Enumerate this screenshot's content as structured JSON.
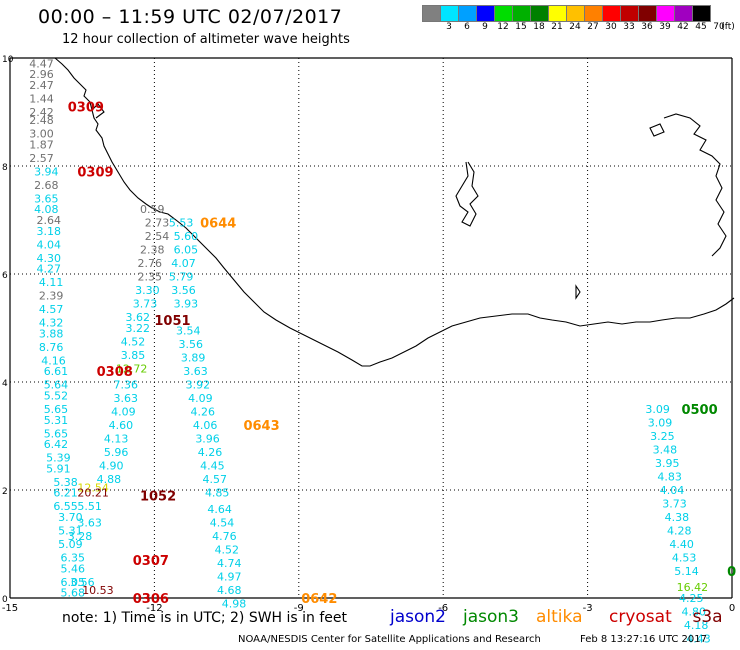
{
  "header": {
    "title": "00:00 – 11:59 UTC 02/07/2017",
    "subtitle": "12 hour collection of altimeter wave heights"
  },
  "legend": {
    "unit": "(ft)",
    "bins": [
      {
        "label": "3",
        "color": "#808080"
      },
      {
        "label": "6",
        "color": "#00e5ff"
      },
      {
        "label": "9",
        "color": "#00a0ff"
      },
      {
        "label": "12",
        "color": "#0000ff"
      },
      {
        "label": "15",
        "color": "#00dd00"
      },
      {
        "label": "18",
        "color": "#00b000"
      },
      {
        "label": "21",
        "color": "#008000"
      },
      {
        "label": "24",
        "color": "#ffff00"
      },
      {
        "label": "27",
        "color": "#ffc000"
      },
      {
        "label": "30",
        "color": "#ff8000"
      },
      {
        "label": "33",
        "color": "#ff0000"
      },
      {
        "label": "36",
        "color": "#c00000"
      },
      {
        "label": "39",
        "color": "#800000"
      },
      {
        "label": "42",
        "color": "#ff00ff"
      },
      {
        "label": "45",
        "color": "#a000c0"
      },
      {
        "label": "70",
        "color": "#000000"
      }
    ]
  },
  "axes": {
    "x_ticks": [
      "-15",
      "-12",
      "-9",
      "-6",
      "-3",
      "0"
    ],
    "y_ticks": [
      "10",
      "8",
      "6",
      "4",
      "2",
      "0"
    ]
  },
  "colors": {
    "gray": "#707070",
    "cyan": "#00d0e8",
    "jason2": "#0000cc",
    "jason3": "#008800",
    "altika": "#ff8c00",
    "cryosat": "#cc0000",
    "s3a": "#800000",
    "green": "#008800",
    "lime": "#66cc00",
    "yellow": "#d8d800"
  },
  "observations": {
    "track_a": [
      {
        "lon": -14.6,
        "lat": 9.9,
        "v": "4.47",
        "c": "gray"
      },
      {
        "lon": -14.6,
        "lat": 9.7,
        "v": "2.96",
        "c": "gray"
      },
      {
        "lon": -14.6,
        "lat": 9.5,
        "v": "2.47",
        "c": "gray"
      },
      {
        "lon": -14.6,
        "lat": 9.25,
        "v": "1.44",
        "c": "gray"
      },
      {
        "lon": -14.6,
        "lat": 9.0,
        "v": "2.42",
        "c": "gray"
      },
      {
        "lon": -14.6,
        "lat": 8.85,
        "v": "2.48",
        "c": "gray"
      },
      {
        "lon": -14.6,
        "lat": 8.6,
        "v": "3.00",
        "c": "gray"
      },
      {
        "lon": -14.6,
        "lat": 8.4,
        "v": "1.87",
        "c": "gray"
      },
      {
        "lon": -14.6,
        "lat": 8.15,
        "v": "2.57",
        "c": "gray"
      },
      {
        "lon": -14.5,
        "lat": 7.9,
        "v": "3.94",
        "c": "cyan"
      },
      {
        "lon": -14.5,
        "lat": 7.65,
        "v": "2.68",
        "c": "gray"
      },
      {
        "lon": -14.5,
        "lat": 7.4,
        "v": "3.65",
        "c": "cyan"
      },
      {
        "lon": -14.5,
        "lat": 7.2,
        "v": "4.08",
        "c": "cyan"
      },
      {
        "lon": -14.45,
        "lat": 7.0,
        "v": "2.64",
        "c": "gray"
      },
      {
        "lon": -14.45,
        "lat": 6.8,
        "v": "3.18",
        "c": "cyan"
      },
      {
        "lon": -14.45,
        "lat": 6.55,
        "v": "4.04",
        "c": "cyan"
      },
      {
        "lon": -14.45,
        "lat": 6.3,
        "v": "4.30",
        "c": "cyan"
      },
      {
        "lon": -14.45,
        "lat": 6.1,
        "v": "4.27",
        "c": "cyan"
      },
      {
        "lon": -14.4,
        "lat": 5.85,
        "v": "4.11",
        "c": "cyan"
      },
      {
        "lon": -14.4,
        "lat": 5.6,
        "v": "2.39",
        "c": "gray"
      },
      {
        "lon": -14.4,
        "lat": 5.35,
        "v": "4.57",
        "c": "cyan"
      },
      {
        "lon": -14.4,
        "lat": 5.1,
        "v": "4.32",
        "c": "cyan"
      },
      {
        "lon": -14.4,
        "lat": 4.9,
        "v": "3.88",
        "c": "cyan"
      },
      {
        "lon": -14.4,
        "lat": 4.65,
        "v": "8.76",
        "c": "cyan"
      },
      {
        "lon": -14.35,
        "lat": 4.4,
        "v": "4.16",
        "c": "cyan"
      },
      {
        "lon": -14.3,
        "lat": 4.2,
        "v": "6.61",
        "c": "cyan"
      },
      {
        "lon": -14.3,
        "lat": 3.95,
        "v": "5.64",
        "c": "cyan"
      },
      {
        "lon": -14.3,
        "lat": 3.75,
        "v": "5.52",
        "c": "cyan"
      },
      {
        "lon": -14.3,
        "lat": 3.5,
        "v": "5.65",
        "c": "cyan"
      },
      {
        "lon": -14.3,
        "lat": 3.3,
        "v": "5.31",
        "c": "cyan"
      },
      {
        "lon": -14.3,
        "lat": 3.05,
        "v": "5.65",
        "c": "cyan"
      },
      {
        "lon": -14.3,
        "lat": 2.85,
        "v": "6.42",
        "c": "cyan"
      },
      {
        "lon": -14.25,
        "lat": 2.6,
        "v": "5.39",
        "c": "cyan"
      },
      {
        "lon": -14.25,
        "lat": 2.4,
        "v": "5.91",
        "c": "cyan"
      },
      {
        "lon": -14.1,
        "lat": 2.15,
        "v": "5.38",
        "c": "cyan"
      },
      {
        "lon": -14.1,
        "lat": 1.95,
        "v": "6.21",
        "c": "cyan"
      },
      {
        "lon": -14.1,
        "lat": 1.7,
        "v": "6.55",
        "c": "cyan"
      },
      {
        "lon": -14.0,
        "lat": 1.5,
        "v": "3.70",
        "c": "cyan"
      },
      {
        "lon": -14.0,
        "lat": 1.25,
        "v": "5.31",
        "c": "cyan"
      },
      {
        "lon": -14.0,
        "lat": 1.0,
        "v": "5.09",
        "c": "cyan"
      },
      {
        "lon": -13.95,
        "lat": 0.75,
        "v": "6.35",
        "c": "cyan"
      },
      {
        "lon": -13.95,
        "lat": 0.55,
        "v": "5.46",
        "c": "cyan"
      },
      {
        "lon": -13.95,
        "lat": 0.3,
        "v": "6.05",
        "c": "cyan"
      },
      {
        "lon": -13.95,
        "lat": 0.1,
        "v": "5.68",
        "c": "cyan"
      }
    ],
    "track_b": [
      {
        "lon": -12.3,
        "lat": 7.2,
        "v": "0.59",
        "c": "gray"
      },
      {
        "lon": -12.2,
        "lat": 6.95,
        "v": "2.73",
        "c": "gray"
      },
      {
        "lon": -12.2,
        "lat": 6.7,
        "v": "2.54",
        "c": "gray"
      },
      {
        "lon": -12.3,
        "lat": 6.45,
        "v": "2.38",
        "c": "gray"
      },
      {
        "lon": -12.35,
        "lat": 6.2,
        "v": "2.76",
        "c": "gray"
      },
      {
        "lon": -12.35,
        "lat": 5.95,
        "v": "2.35",
        "c": "gray"
      },
      {
        "lon": -12.4,
        "lat": 5.7,
        "v": "3.30",
        "c": "cyan"
      },
      {
        "lon": -12.45,
        "lat": 5.45,
        "v": "3.73",
        "c": "cyan"
      },
      {
        "lon": -12.6,
        "lat": 5.2,
        "v": "3.62",
        "c": "cyan"
      },
      {
        "lon": -12.6,
        "lat": 5.0,
        "v": "3.22",
        "c": "cyan"
      },
      {
        "lon": -12.7,
        "lat": 4.75,
        "v": "4.52",
        "c": "cyan"
      },
      {
        "lon": -12.7,
        "lat": 4.5,
        "v": "3.85",
        "c": "cyan"
      },
      {
        "lon": -12.8,
        "lat": 4.25,
        "v": "12.72",
        "c": "lime"
      },
      {
        "lon": -12.85,
        "lat": 3.95,
        "v": "7.36",
        "c": "cyan"
      },
      {
        "lon": -12.85,
        "lat": 3.7,
        "v": "3.63",
        "c": "cyan"
      },
      {
        "lon": -12.9,
        "lat": 3.45,
        "v": "4.09",
        "c": "cyan"
      },
      {
        "lon": -12.95,
        "lat": 3.2,
        "v": "4.60",
        "c": "cyan"
      },
      {
        "lon": -13.05,
        "lat": 2.95,
        "v": "4.13",
        "c": "cyan"
      },
      {
        "lon": -13.05,
        "lat": 2.7,
        "v": "5.96",
        "c": "cyan"
      },
      {
        "lon": -13.15,
        "lat": 2.45,
        "v": "4.90",
        "c": "cyan"
      },
      {
        "lon": -13.2,
        "lat": 2.2,
        "v": "4.88",
        "c": "cyan"
      },
      {
        "lon": -13.6,
        "lat": 2.05,
        "v": "12.54",
        "c": "yellow"
      },
      {
        "lon": -13.6,
        "lat": 1.95,
        "v": "20.21",
        "c": "s3a"
      },
      {
        "lon": -13.6,
        "lat": 1.7,
        "v": "5.51",
        "c": "cyan"
      },
      {
        "lon": -13.6,
        "lat": 1.4,
        "v": "3.63",
        "c": "cyan"
      },
      {
        "lon": -13.8,
        "lat": 1.15,
        "v": "3.28",
        "c": "cyan"
      },
      {
        "lon": -13.75,
        "lat": 0.3,
        "v": "3.56",
        "c": "cyan"
      },
      {
        "lon": -13.5,
        "lat": 0.15,
        "v": "10.53",
        "c": "s3a"
      }
    ],
    "track_c": [
      {
        "lon": -11.7,
        "lat": 6.95,
        "v": "5.53",
        "c": "cyan"
      },
      {
        "lon": -11.6,
        "lat": 6.7,
        "v": "5.60",
        "c": "cyan"
      },
      {
        "lon": -11.6,
        "lat": 6.45,
        "v": "6.05",
        "c": "cyan"
      },
      {
        "lon": -11.65,
        "lat": 6.2,
        "v": "4.07",
        "c": "cyan"
      },
      {
        "lon": -11.7,
        "lat": 5.95,
        "v": "5.79",
        "c": "cyan"
      },
      {
        "lon": -11.65,
        "lat": 5.7,
        "v": "3.56",
        "c": "cyan"
      },
      {
        "lon": -11.6,
        "lat": 5.45,
        "v": "3.93",
        "c": "cyan"
      },
      {
        "lon": -11.55,
        "lat": 4.95,
        "v": "3.54",
        "c": "cyan"
      },
      {
        "lon": -11.5,
        "lat": 4.7,
        "v": "3.56",
        "c": "cyan"
      },
      {
        "lon": -11.45,
        "lat": 4.45,
        "v": "3.89",
        "c": "cyan"
      },
      {
        "lon": -11.4,
        "lat": 4.2,
        "v": "3.63",
        "c": "cyan"
      },
      {
        "lon": -11.35,
        "lat": 3.95,
        "v": "3.92",
        "c": "cyan"
      },
      {
        "lon": -11.3,
        "lat": 3.7,
        "v": "4.09",
        "c": "cyan"
      },
      {
        "lon": -11.25,
        "lat": 3.45,
        "v": "4.26",
        "c": "cyan"
      },
      {
        "lon": -11.2,
        "lat": 3.2,
        "v": "4.06",
        "c": "cyan"
      },
      {
        "lon": -11.15,
        "lat": 2.95,
        "v": "3.96",
        "c": "cyan"
      },
      {
        "lon": -11.1,
        "lat": 2.7,
        "v": "4.26",
        "c": "cyan"
      },
      {
        "lon": -11.05,
        "lat": 2.45,
        "v": "4.45",
        "c": "cyan"
      },
      {
        "lon": -11.0,
        "lat": 2.2,
        "v": "4.57",
        "c": "cyan"
      },
      {
        "lon": -10.95,
        "lat": 1.95,
        "v": "4.85",
        "c": "cyan"
      },
      {
        "lon": -10.9,
        "lat": 1.65,
        "v": "4.64",
        "c": "cyan"
      },
      {
        "lon": -10.85,
        "lat": 1.4,
        "v": "4.54",
        "c": "cyan"
      },
      {
        "lon": -10.8,
        "lat": 1.15,
        "v": "4.76",
        "c": "cyan"
      },
      {
        "lon": -10.75,
        "lat": 0.9,
        "v": "4.52",
        "c": "cyan"
      },
      {
        "lon": -10.7,
        "lat": 0.65,
        "v": "4.74",
        "c": "cyan"
      },
      {
        "lon": -10.7,
        "lat": 0.4,
        "v": "4.97",
        "c": "cyan"
      },
      {
        "lon": -10.7,
        "lat": 0.15,
        "v": "4.68",
        "c": "cyan"
      },
      {
        "lon": -10.6,
        "lat": -0.1,
        "v": "4.98",
        "c": "cyan"
      }
    ],
    "track_d": [
      {
        "lon": -1.8,
        "lat": 3.5,
        "v": "3.09",
        "c": "cyan"
      },
      {
        "lon": -1.75,
        "lat": 3.25,
        "v": "3.09",
        "c": "cyan"
      },
      {
        "lon": -1.7,
        "lat": 3.0,
        "v": "3.25",
        "c": "cyan"
      },
      {
        "lon": -1.65,
        "lat": 2.75,
        "v": "3.48",
        "c": "cyan"
      },
      {
        "lon": -1.6,
        "lat": 2.5,
        "v": "3.95",
        "c": "cyan"
      },
      {
        "lon": -1.55,
        "lat": 2.25,
        "v": "4.83",
        "c": "cyan"
      },
      {
        "lon": -1.5,
        "lat": 2.0,
        "v": "4.04",
        "c": "cyan"
      },
      {
        "lon": -1.45,
        "lat": 1.75,
        "v": "3.73",
        "c": "cyan"
      },
      {
        "lon": -1.4,
        "lat": 1.5,
        "v": "4.38",
        "c": "cyan"
      },
      {
        "lon": -1.35,
        "lat": 1.25,
        "v": "4.28",
        "c": "cyan"
      },
      {
        "lon": -1.3,
        "lat": 1.0,
        "v": "4.40",
        "c": "cyan"
      },
      {
        "lon": -1.25,
        "lat": 0.75,
        "v": "4.53",
        "c": "cyan"
      },
      {
        "lon": -1.2,
        "lat": 0.5,
        "v": "5.14",
        "c": "cyan"
      },
      {
        "lon": -1.15,
        "lat": 0.2,
        "v": "16.42",
        "c": "lime"
      },
      {
        "lon": -1.1,
        "lat": 0.0,
        "v": "4.25",
        "c": "cyan"
      },
      {
        "lon": -1.05,
        "lat": -0.25,
        "v": "4.80",
        "c": "cyan"
      },
      {
        "lon": -1.0,
        "lat": -0.5,
        "v": "4.18",
        "c": "cyan"
      },
      {
        "lon": -0.95,
        "lat": -0.75,
        "v": "4.43",
        "c": "cyan"
      }
    ],
    "times": [
      {
        "lon": -13.8,
        "lat": 9.1,
        "v": "0309",
        "c": "cryosat"
      },
      {
        "lon": -13.6,
        "lat": 7.9,
        "v": "0309",
        "c": "cryosat"
      },
      {
        "lon": -11.05,
        "lat": 6.95,
        "v": "0644",
        "c": "altika"
      },
      {
        "lon": -12.0,
        "lat": 5.15,
        "v": "1051",
        "c": "s3a"
      },
      {
        "lon": -13.2,
        "lat": 4.2,
        "v": "0308",
        "c": "cryosat"
      },
      {
        "lon": -10.15,
        "lat": 3.2,
        "v": "0643",
        "c": "altika"
      },
      {
        "lon": -12.3,
        "lat": 1.9,
        "v": "1052",
        "c": "s3a"
      },
      {
        "lon": -12.45,
        "lat": 0.7,
        "v": "0307",
        "c": "cryosat"
      },
      {
        "lon": -12.45,
        "lat": 0.0,
        "v": "0306",
        "c": "cryosat"
      },
      {
        "lon": -8.95,
        "lat": 0.0,
        "v": "0642",
        "c": "altika"
      },
      {
        "lon": -1.05,
        "lat": 3.5,
        "v": "0500",
        "c": "jason3"
      },
      {
        "lon": -0.1,
        "lat": 0.5,
        "v": "0",
        "c": "green"
      }
    ]
  },
  "bottom": {
    "note": "note: 1) Time is in UTC; 2) SWH is in feet",
    "satellites": [
      {
        "name": "jason2",
        "c": "jason2"
      },
      {
        "name": "jason3",
        "c": "jason3"
      },
      {
        "name": "altika",
        "c": "altika"
      },
      {
        "name": "cryosat",
        "c": "cryosat"
      },
      {
        "name": "s3a",
        "c": "s3a"
      }
    ],
    "credit": "NOAA/NESDIS Center for Satellite Applications and Research",
    "timestamp": "Feb  8 13:27:16 UTC 2017"
  }
}
